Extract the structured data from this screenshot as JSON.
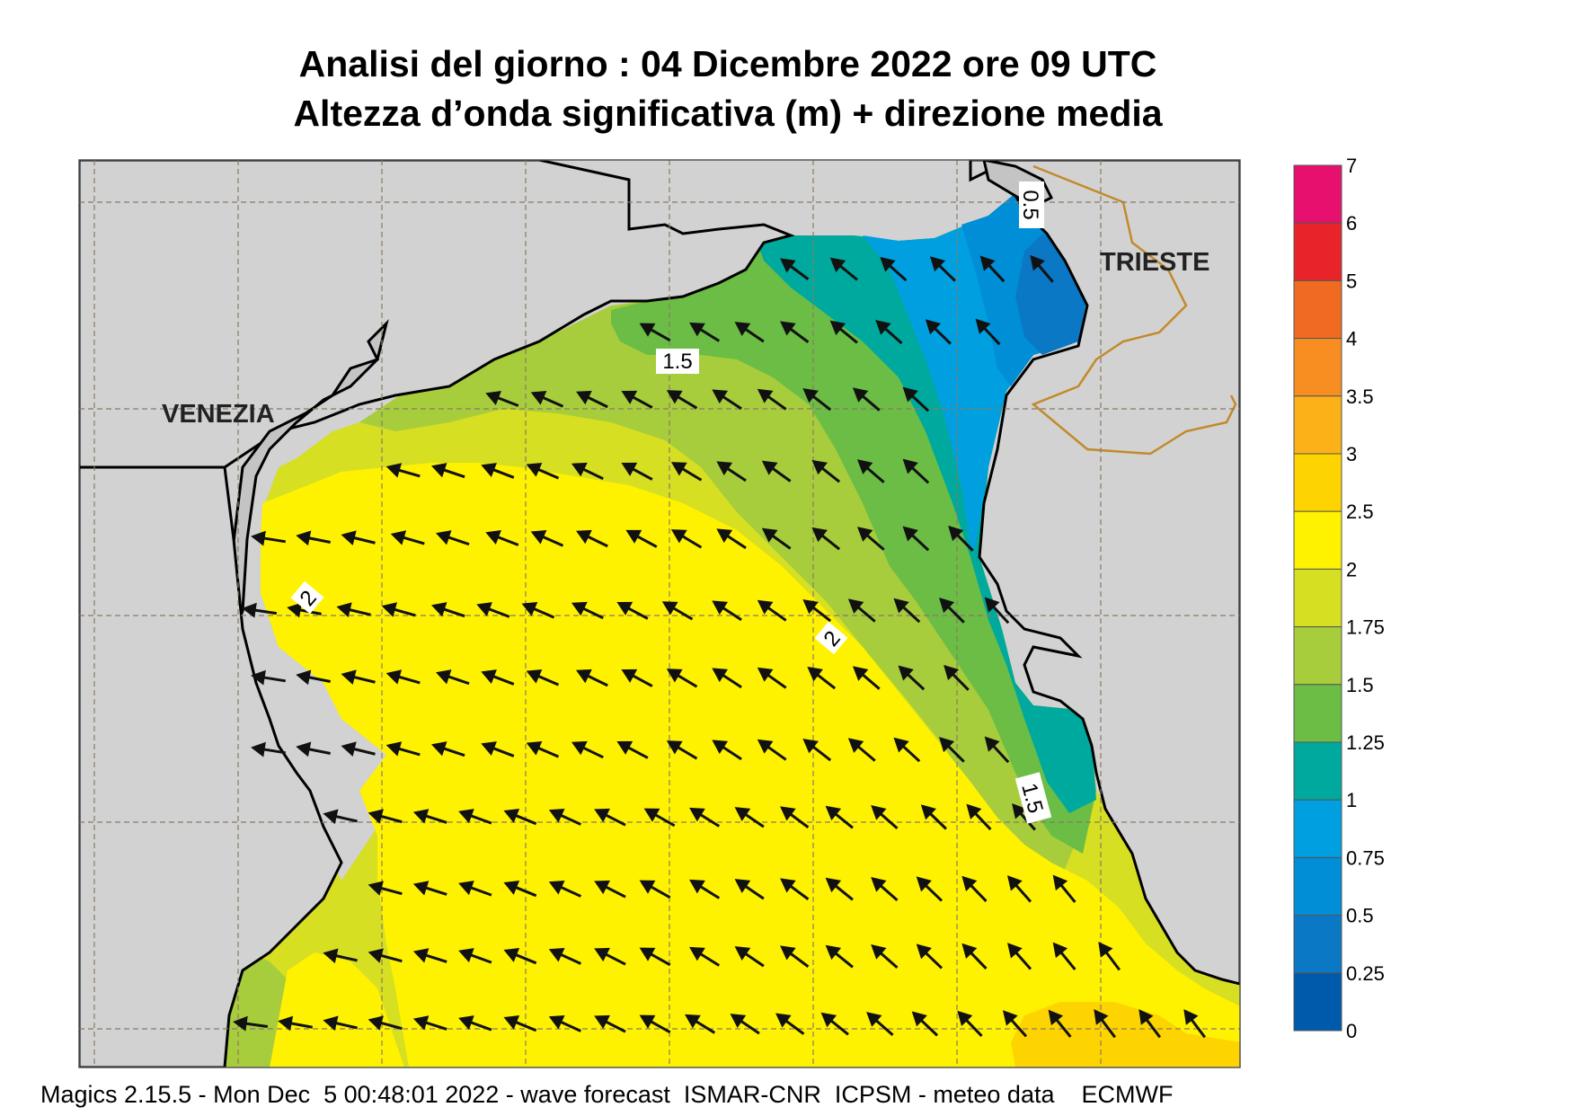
{
  "title": {
    "line1": "Analisi del giorno :  04 Dicembre  2022   ore 09 UTC",
    "line2": "Altezza d’onda significativa (m) + direzione media"
  },
  "map": {
    "cities": [
      "VENEZIA",
      "TRIESTE"
    ],
    "land_color": "#d2d2d2",
    "coast_color": "#000000",
    "border_color": "#c28a2a",
    "contour_labels": [
      "1.5",
      "2",
      "2",
      "1.5",
      "0.5",
      "0.5"
    ],
    "wave_direction": "from south-east toward north-west"
  },
  "legend": {
    "levels": [
      "7",
      "6",
      "5",
      "4",
      "3.5",
      "3",
      "2.5",
      "2",
      "1.75",
      "1.5",
      "1.25",
      "1",
      "0.75",
      "0.5",
      "0.25",
      "0"
    ],
    "colors": [
      "#e8106e",
      "#e8242a",
      "#f06a22",
      "#f88e22",
      "#fcb118",
      "#fdd400",
      "#fff200",
      "#d6df22",
      "#a7cd3c",
      "#6bbd45",
      "#00a99d",
      "#00a0e0",
      "#008ed6",
      "#0a78c4",
      "#005aab"
    ]
  },
  "footer": "Magics 2.15.5 - Mon Dec  5 00:48:01 2022 - wave forecast  ISMAR-CNR  ICPSM - meteo data    ECMWF"
}
